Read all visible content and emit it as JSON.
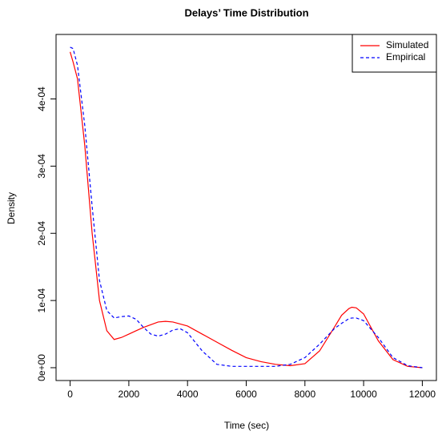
{
  "chart_data": {
    "type": "line",
    "title": "Delays’ Time Distribution",
    "x_label": "Time (sec)",
    "y_label": "Density",
    "x": [
      0,
      100,
      250,
      500,
      750,
      1000,
      1250,
      1500,
      1750,
      2000,
      2250,
      2500,
      2750,
      3000,
      3250,
      3500,
      3750,
      4000,
      4500,
      5000,
      5500,
      6000,
      6500,
      7000,
      7500,
      8000,
      8500,
      9000,
      9250,
      9500,
      9600,
      9750,
      10000,
      10500,
      11000,
      11500,
      12000
    ],
    "series": [
      {
        "name": "Simulated",
        "color": "#ff0000",
        "linestyle": "solid",
        "values": [
          0.00047,
          0.000455,
          0.00043,
          0.00033,
          0.0002,
          0.0001,
          5.5e-05,
          4.2e-05,
          4.5e-05,
          5e-05,
          5.5e-05,
          6e-05,
          6.4e-05,
          6.8e-05,
          6.9e-05,
          6.8e-05,
          6.5e-05,
          6.2e-05,
          5e-05,
          3.8e-05,
          2.6e-05,
          1.5e-05,
          9e-06,
          5e-06,
          3e-06,
          6e-06,
          2.5e-05,
          6e-05,
          7.8e-05,
          8.8e-05,
          9e-05,
          8.9e-05,
          8e-05,
          4e-05,
          1.2e-05,
          2e-06,
          0
        ]
      },
      {
        "name": "Empirical",
        "color": "#0000ff",
        "linestyle": "dashed",
        "values": [
          0.000477,
          0.000475,
          0.00045,
          0.00036,
          0.00024,
          0.00013,
          8.5e-05,
          7.4e-05,
          7.6e-05,
          7.7e-05,
          7.2e-05,
          6e-05,
          5e-05,
          4.7e-05,
          5e-05,
          5.6e-05,
          5.8e-05,
          5.2e-05,
          2.5e-05,
          5e-06,
          2e-06,
          2e-06,
          2e-06,
          2e-06,
          5e-06,
          1.5e-05,
          3.5e-05,
          5.8e-05,
          6.6e-05,
          7.3e-05,
          7.4e-05,
          7.4e-05,
          7e-05,
          4.5e-05,
          1.5e-05,
          3e-06,
          0
        ]
      }
    ],
    "xlim": [
      -480,
      12480
    ],
    "xticks": [
      0,
      2000,
      4000,
      6000,
      8000,
      10000,
      12000
    ],
    "ylim": [
      -1.91e-05,
      0.000496
    ],
    "yticks": [
      {
        "value": 0,
        "label": "0e+00"
      },
      {
        "value": 0.0001,
        "label": "1e-04"
      },
      {
        "value": 0.0002,
        "label": "2e-04"
      },
      {
        "value": 0.0003,
        "label": "3e-04"
      },
      {
        "value": 0.0004,
        "label": "4e-04"
      }
    ],
    "legend": "topright",
    "grid": false
  }
}
